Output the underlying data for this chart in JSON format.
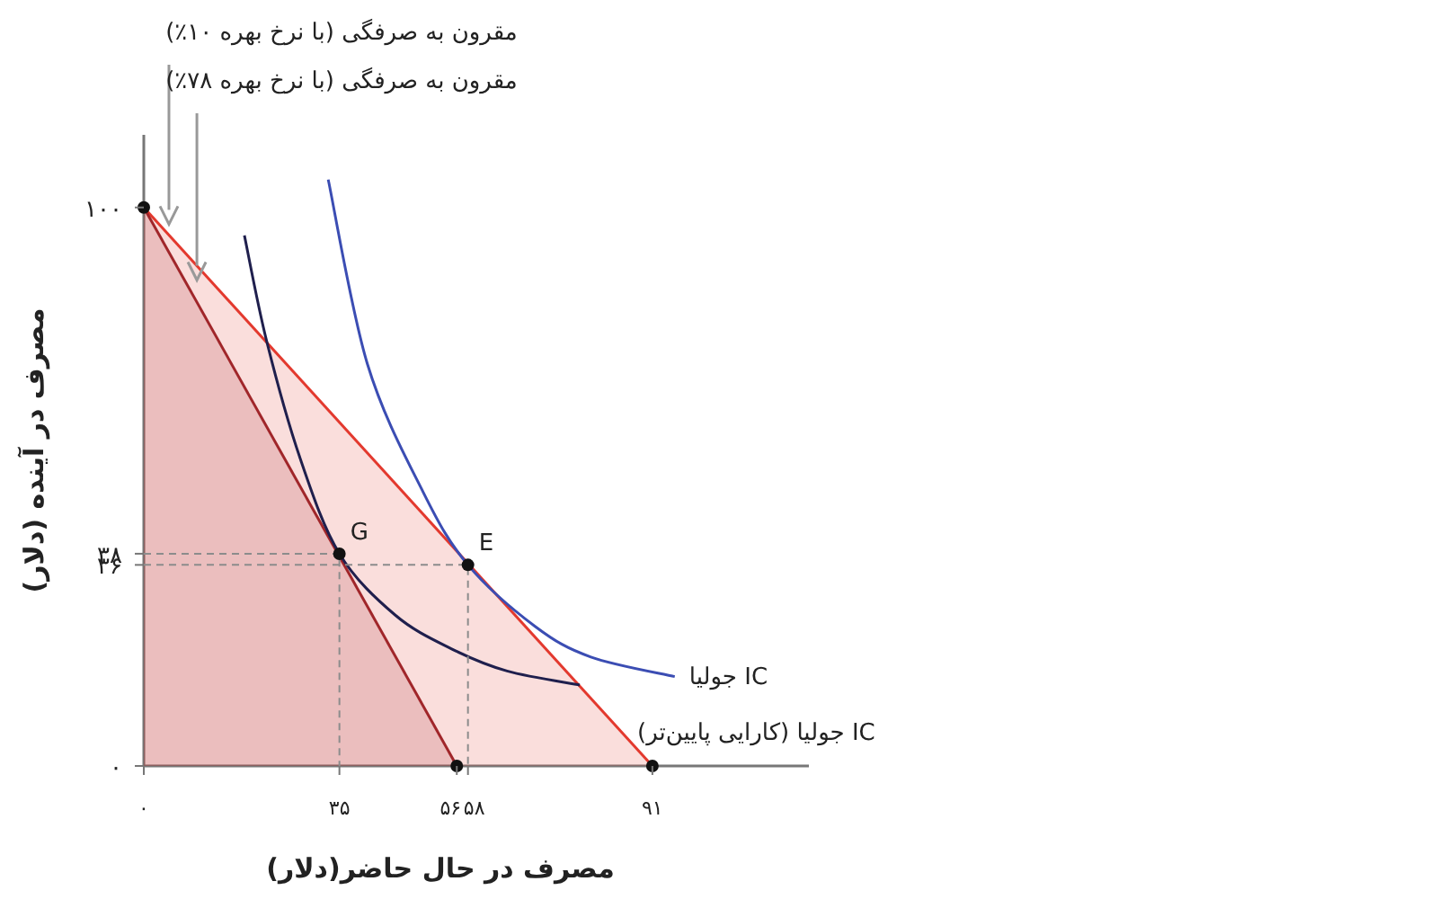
{
  "chart_data": {
    "type": "line",
    "xlabel": "مصرف در حال حاضر(دلار)",
    "ylabel": "مصرف در آینده (دلار)",
    "xlim": [
      0,
      119
    ],
    "ylim": [
      0,
      113
    ],
    "xticks": [
      {
        "value": 0,
        "label": "۰"
      },
      {
        "value": 35,
        "label": "۳۵"
      },
      {
        "value": 56,
        "label": "۵۶"
      },
      {
        "value": 58,
        "label": "۵۸"
      },
      {
        "value": 91,
        "label": "۹۱"
      }
    ],
    "yticks": [
      {
        "value": 0,
        "label": "۰"
      },
      {
        "value": 36,
        "label": "۳۶"
      },
      {
        "value": 38,
        "label": "۳۸"
      },
      {
        "value": 100,
        "label": "۱۰۰"
      }
    ],
    "grid": false,
    "series": [
      {
        "type": "area",
        "color": "#e3392e",
        "x": [
          0,
          91
        ],
        "values": [
          100,
          0
        ]
      },
      {
        "type": "area",
        "color": "#a0262a",
        "x": [
          0,
          56
        ],
        "values": [
          100,
          0
        ]
      },
      {
        "type": "line",
        "name": "IC جولیا",
        "color": "#3b4db3",
        "x": [
          33,
          40,
          50,
          58,
          70,
          80,
          95
        ],
        "values": [
          105,
          72,
          49,
          36,
          25,
          19.5,
          16
        ]
      },
      {
        "type": "line",
        "name": "IC جولیا (کارایی پایین‌تر)",
        "color": "#1f1f4d",
        "x": [
          18,
          22,
          28,
          35,
          45,
          55,
          65,
          78
        ],
        "values": [
          95,
          76,
          55,
          38,
          27,
          21,
          17,
          14.5
        ]
      },
      {
        "type": "line",
        "line_style": "dashed",
        "color": "#8c8c8c",
        "x": [
          0,
          35,
          35
        ],
        "values": [
          38,
          38,
          0
        ]
      },
      {
        "type": "line",
        "line_style": "dashed",
        "color": "#8c8c8c",
        "x": [
          0,
          58,
          58
        ],
        "values": [
          36,
          36,
          0
        ]
      },
      {
        "type": "scatter",
        "marker": "circle",
        "color": "#111111",
        "x": [
          0,
          35,
          58,
          56,
          91
        ],
        "values": [
          100,
          38,
          36,
          0,
          0
        ]
      }
    ],
    "annotations": [
      {
        "text": "G",
        "x": 35,
        "y": 38
      },
      {
        "text": "E",
        "x": 58,
        "y": 36
      },
      {
        "text": "مقرون به صرفگی (با نرخ بهره ۱۰٪)",
        "x": 4.5,
        "y": 97
      },
      {
        "text": "مقرون به صرفگی (با نرخ بهره ۷۸٪)",
        "x": 9.5,
        "y": 87
      }
    ]
  }
}
